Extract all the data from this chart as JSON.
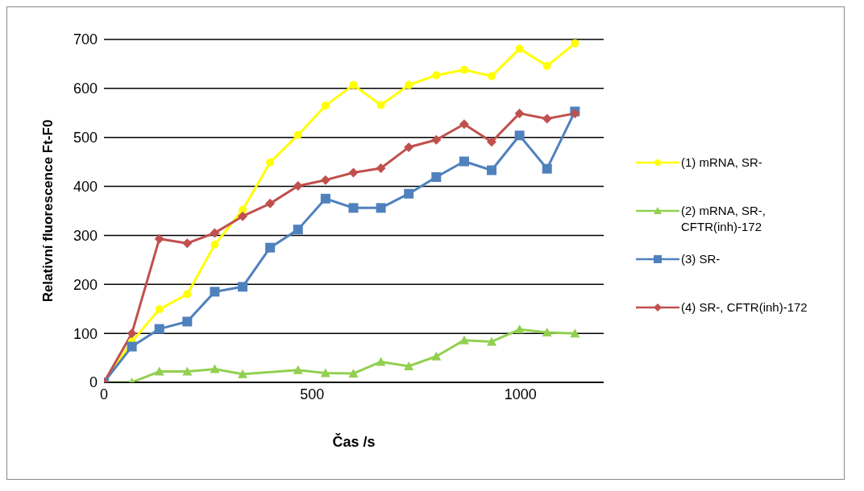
{
  "chart_data": {
    "type": "line",
    "xlabel": "Čas /s",
    "ylabel": "Relativní fluorescence Ft-F0",
    "x": [
      0,
      67,
      133,
      200,
      266,
      333,
      399,
      466,
      532,
      599,
      665,
      732,
      798,
      865,
      931,
      998,
      1064,
      1131
    ],
    "xlim": [
      0,
      1200
    ],
    "xticks": [
      0,
      500,
      1000
    ],
    "ylim": [
      0,
      700
    ],
    "yticks": [
      0,
      100,
      200,
      300,
      400,
      500,
      600,
      700
    ],
    "grid": "y",
    "legend": "right",
    "line_style": "solid",
    "series": [
      {
        "name": "(1) mRNA, SR-",
        "color": "#ffff00",
        "marker": "circle",
        "values": [
          0,
          83,
          149,
          180,
          281,
          352,
          449,
          505,
          565,
          607,
          566,
          607,
          627,
          638,
          625,
          681,
          646,
          692
        ]
      },
      {
        "name": "(2) mRNA, SR-, CFTR(inh)-172",
        "color": "#92d050",
        "marker": "triangle",
        "values": [
          0,
          0,
          22,
          22,
          27,
          17,
          null,
          25,
          19,
          18,
          42,
          33,
          53,
          86,
          83,
          108,
          102,
          100
        ]
      },
      {
        "name": "(3) SR-",
        "color": "#4f81bd",
        "marker": "square",
        "values": [
          0,
          73,
          109,
          124,
          185,
          195,
          275,
          312,
          375,
          356,
          356,
          385,
          419,
          451,
          433,
          504,
          436,
          553
        ]
      },
      {
        "name": "(4) SR-, CFTR(inh)-172",
        "color": "#c0504d",
        "marker": "diamond",
        "values": [
          0,
          100,
          293,
          284,
          305,
          339,
          365,
          401,
          413,
          428,
          437,
          480,
          495,
          527,
          491,
          549,
          538,
          549
        ]
      }
    ]
  }
}
